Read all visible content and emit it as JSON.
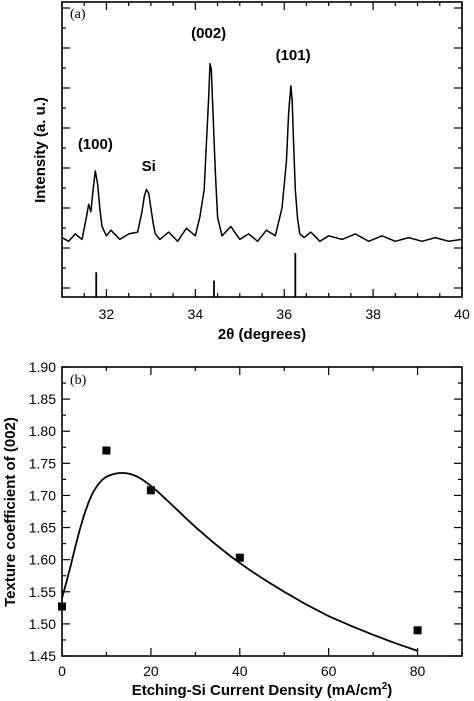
{
  "chart_data": [
    {
      "type": "line",
      "panel_label": "(a)",
      "xlabel": "2θ (degrees)",
      "ylabel": "Intensity (a. u.)",
      "xlim": [
        31,
        40
      ],
      "x_ticks": [
        32,
        34,
        36,
        38,
        40
      ],
      "y_tick_labels_shown": false,
      "grid": false,
      "series": [
        {
          "x": [
            31.0,
            31.15,
            31.3,
            31.45,
            31.55,
            31.6,
            31.65,
            31.7,
            31.75,
            31.8,
            31.85,
            31.9,
            32.0,
            32.1,
            32.3,
            32.5,
            32.7,
            32.8,
            32.85,
            32.9,
            32.95,
            33.0,
            33.05,
            33.1,
            33.2,
            33.4,
            33.6,
            33.8,
            34.0,
            34.1,
            34.2,
            34.25,
            34.3,
            34.33,
            34.36,
            34.4,
            34.45,
            34.5,
            34.6,
            34.8,
            35.0,
            35.2,
            35.4,
            35.6,
            35.8,
            35.95,
            36.05,
            36.1,
            36.15,
            36.18,
            36.21,
            36.25,
            36.3,
            36.35,
            36.45,
            36.6,
            36.8,
            37.0,
            37.3,
            37.6,
            37.9,
            38.2,
            38.5,
            38.8,
            39.1,
            39.4,
            39.7,
            40.0
          ],
          "y": [
            0.04,
            0.02,
            0.06,
            0.03,
            0.15,
            0.22,
            0.18,
            0.3,
            0.4,
            0.33,
            0.2,
            0.1,
            0.05,
            0.08,
            0.03,
            0.06,
            0.07,
            0.18,
            0.26,
            0.3,
            0.28,
            0.2,
            0.12,
            0.06,
            0.03,
            0.07,
            0.02,
            0.09,
            0.05,
            0.15,
            0.3,
            0.55,
            0.8,
            0.98,
            0.95,
            0.7,
            0.4,
            0.15,
            0.05,
            0.1,
            0.03,
            0.06,
            0.02,
            0.08,
            0.05,
            0.2,
            0.45,
            0.72,
            0.86,
            0.78,
            0.55,
            0.3,
            0.14,
            0.06,
            0.04,
            0.07,
            0.02,
            0.05,
            0.03,
            0.06,
            0.02,
            0.05,
            0.02,
            0.04,
            0.02,
            0.04,
            0.02,
            0.03
          ]
        }
      ],
      "reference_lines": [
        {
          "x": 31.77,
          "height": 0.45
        },
        {
          "x": 34.42,
          "height": 0.3
        },
        {
          "x": 36.25,
          "height": 0.8
        }
      ],
      "annotations": [
        {
          "text": "(100)",
          "x": 31.75,
          "y": 0.52
        },
        {
          "text": "Si",
          "x": 32.95,
          "y": 0.4
        },
        {
          "text": "(002)",
          "x": 34.3,
          "y": 1.12
        },
        {
          "text": "(101)",
          "x": 36.2,
          "y": 1.0
        }
      ]
    },
    {
      "type": "scatter",
      "panel_label": "(b)",
      "xlabel": "Etching-Si Current Density (mA/cm²)",
      "xlabel_main": "Etching-Si Current Density (mA/cm",
      "xlabel_sup": "2",
      "xlabel_tail": ")",
      "ylabel": "Texture coefficient of (002)",
      "xlim": [
        0,
        90
      ],
      "ylim": [
        1.45,
        1.9
      ],
      "x_ticks": [
        0,
        20,
        40,
        60,
        80
      ],
      "y_ticks": [
        1.45,
        1.5,
        1.55,
        1.6,
        1.65,
        1.7,
        1.75,
        1.8,
        1.85,
        1.9
      ],
      "y_tick_labels": [
        "1.45",
        "1.50",
        "1.55",
        "1.60",
        "1.65",
        "1.70",
        "1.75",
        "1.80",
        "1.85",
        "1.90"
      ],
      "grid": false,
      "series": [
        {
          "x": [
            0,
            10,
            20,
            40,
            80
          ],
          "y": [
            1.527,
            1.77,
            1.708,
            1.603,
            1.49
          ]
        }
      ],
      "fit_curve": {
        "x": [
          0,
          1,
          2,
          3,
          4,
          5,
          6,
          7,
          8,
          9,
          10,
          11,
          12,
          13,
          14,
          15,
          16,
          17,
          18,
          20,
          22,
          24,
          26,
          28,
          30,
          34,
          38,
          42,
          46,
          50,
          55,
          60,
          65,
          70,
          75,
          80
        ],
        "y": [
          1.54,
          1.565,
          1.592,
          1.62,
          1.647,
          1.67,
          1.69,
          1.705,
          1.716,
          1.724,
          1.729,
          1.732,
          1.734,
          1.735,
          1.735,
          1.734,
          1.732,
          1.729,
          1.725,
          1.715,
          1.703,
          1.69,
          1.677,
          1.664,
          1.651,
          1.627,
          1.605,
          1.585,
          1.567,
          1.55,
          1.53,
          1.512,
          1.497,
          1.483,
          1.47,
          1.458
        ]
      }
    }
  ]
}
